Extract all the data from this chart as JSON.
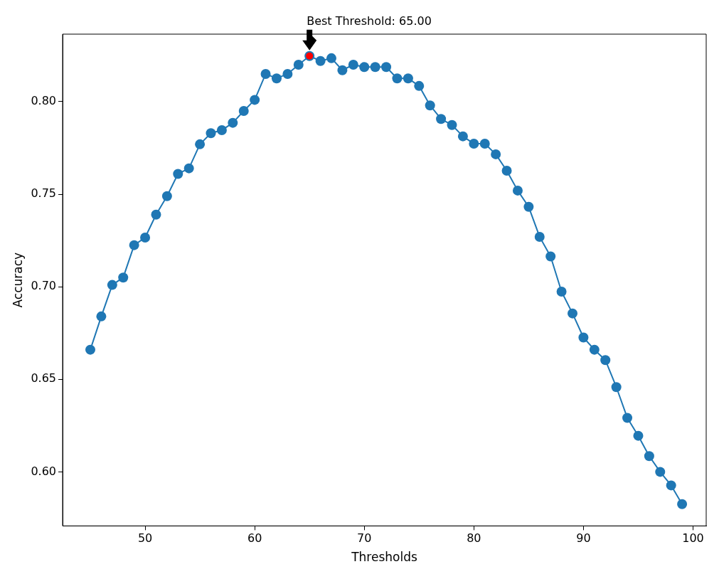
{
  "chart_data": {
    "type": "line",
    "xlabel": "Thresholds",
    "ylabel": "Accuracy",
    "marker": "circle",
    "grid": false,
    "xlim": [
      42.47,
      101.2
    ],
    "xticks": [
      50,
      60,
      70,
      80,
      90,
      100
    ],
    "ylim": [
      0.5708,
      0.8365
    ],
    "yticks": [
      {
        "value": 0.6,
        "label": "0.60"
      },
      {
        "value": 0.65,
        "label": "0.65"
      },
      {
        "value": 0.7,
        "label": "0.70"
      },
      {
        "value": 0.75,
        "label": "0.75"
      },
      {
        "value": 0.8,
        "label": "0.80"
      }
    ],
    "series": [
      {
        "color": "#1f77b4",
        "x": [
          45,
          46,
          47,
          48,
          49,
          50,
          51,
          52,
          53,
          54,
          55,
          56,
          57,
          58,
          59,
          60,
          61,
          62,
          63,
          64,
          65,
          66,
          67,
          68,
          69,
          70,
          71,
          72,
          73,
          74,
          75,
          76,
          77,
          78,
          79,
          80,
          81,
          82,
          83,
          84,
          85,
          86,
          87,
          88,
          89,
          90,
          91,
          92,
          93,
          94,
          95,
          96,
          97,
          98,
          99
        ],
        "values": [
          0.666,
          0.684,
          0.701,
          0.705,
          0.7225,
          0.7266,
          0.739,
          0.749,
          0.761,
          0.764,
          0.777,
          0.783,
          0.7846,
          0.7886,
          0.795,
          0.801,
          0.815,
          0.8126,
          0.815,
          0.82,
          0.8247,
          0.822,
          0.8235,
          0.817,
          0.82,
          0.8187,
          0.8187,
          0.8187,
          0.8126,
          0.8126,
          0.8085,
          0.798,
          0.7907,
          0.7874,
          0.7813,
          0.7773,
          0.7773,
          0.7716,
          0.7627,
          0.752,
          0.7432,
          0.727,
          0.7164,
          0.6974,
          0.6856,
          0.6726,
          0.666,
          0.6604,
          0.6458,
          0.6292,
          0.6195,
          0.6085,
          0.6,
          0.5927,
          0.5826
        ]
      },
      {
        "type": "scatter",
        "color": "#ff0000",
        "x": [
          65
        ],
        "values": [
          0.8247
        ]
      }
    ],
    "annotations": [
      {
        "text": "Best Threshold: 65.00",
        "x": 65,
        "y": 0.8247
      }
    ]
  }
}
